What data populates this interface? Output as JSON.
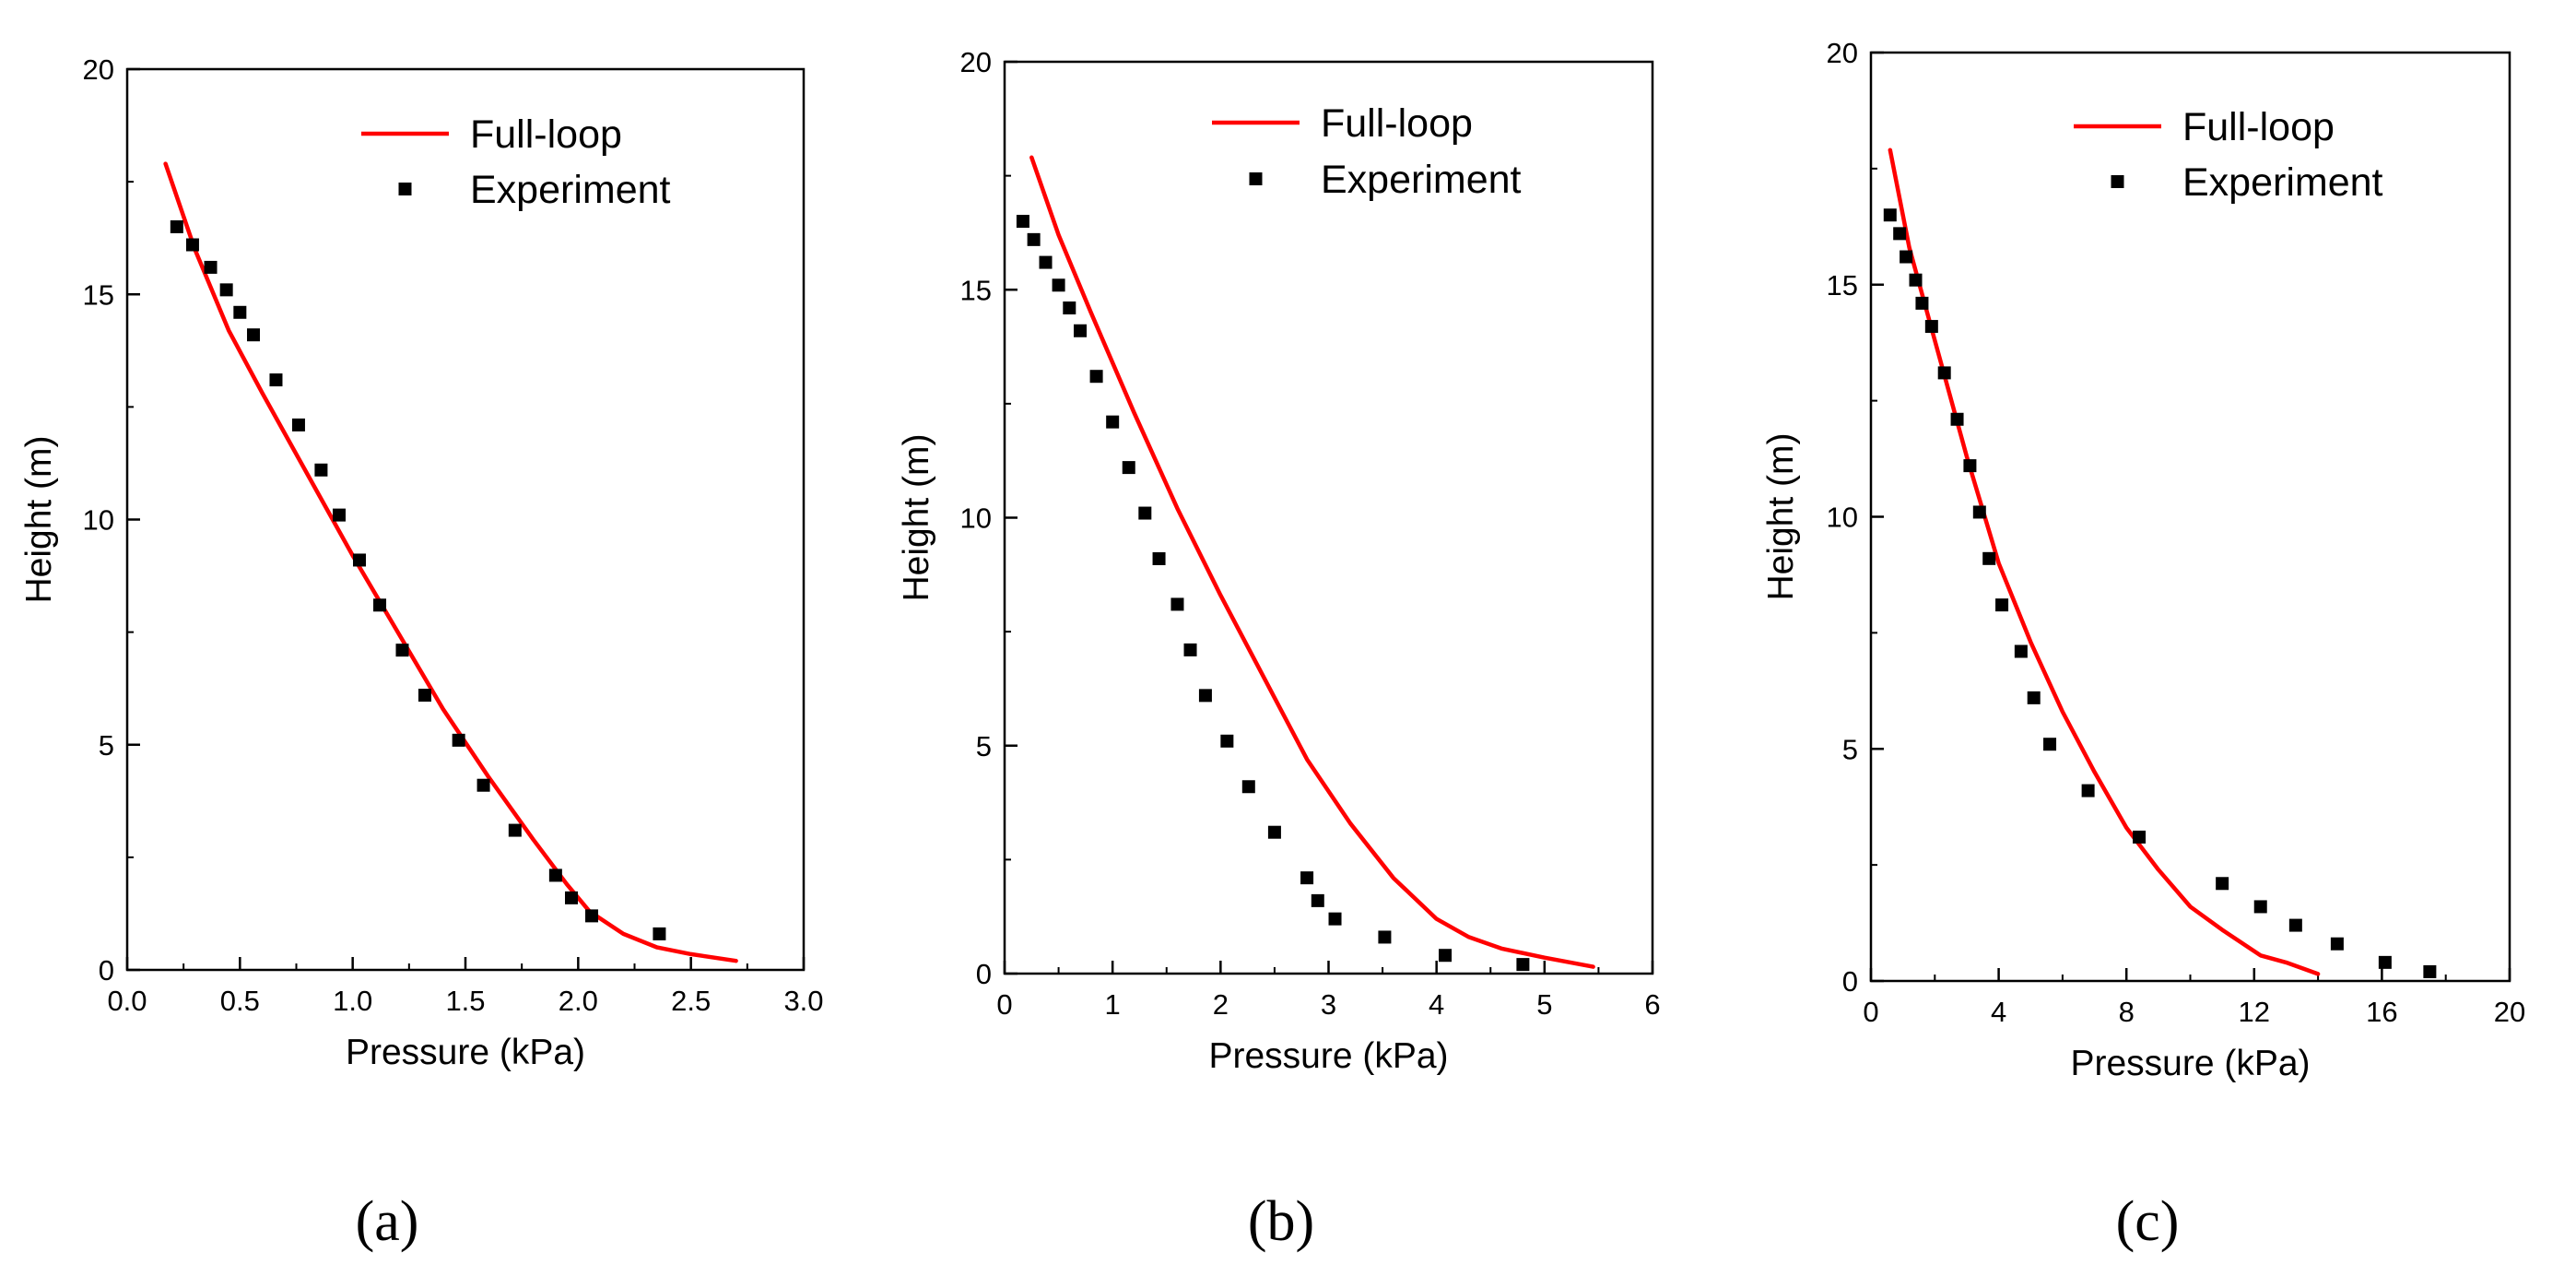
{
  "colors": {
    "simulation_line": "#ff0000",
    "experiment_marker": "#000000",
    "axis": "#000000",
    "background": "#ffffff"
  },
  "chart_data": [
    {
      "type": "line+scatter",
      "panel_label": "(a)",
      "xlabel": "Pressure (kPa)",
      "ylabel": "Height (m)",
      "xlim": [
        0.0,
        3.0
      ],
      "ylim": [
        0,
        20
      ],
      "xticks": [
        "0.0",
        "0.5",
        "1.0",
        "1.5",
        "2.0",
        "2.5",
        "3.0"
      ],
      "xtick_values": [
        0.0,
        0.5,
        1.0,
        1.5,
        2.0,
        2.5,
        3.0
      ],
      "yticks": [
        "0",
        "5",
        "10",
        "15",
        "20"
      ],
      "ytick_values": [
        0,
        5,
        10,
        15,
        20
      ],
      "legend": [
        "Full-loop",
        "Experiment"
      ],
      "legend_position": "top-right",
      "series": [
        {
          "name": "Full-loop",
          "kind": "line",
          "x": [
            0.17,
            0.3,
            0.45,
            0.6,
            0.8,
            1.0,
            1.2,
            1.4,
            1.6,
            1.8,
            1.95,
            2.05,
            2.2,
            2.35,
            2.5,
            2.7
          ],
          "y": [
            17.9,
            16.0,
            14.2,
            12.8,
            11.0,
            9.2,
            7.5,
            5.8,
            4.3,
            2.9,
            1.9,
            1.3,
            0.8,
            0.5,
            0.35,
            0.2
          ]
        },
        {
          "name": "Experiment",
          "kind": "scatter",
          "x": [
            0.22,
            0.29,
            0.37,
            0.44,
            0.5,
            0.56,
            0.66,
            0.76,
            0.86,
            0.94,
            1.03,
            1.12,
            1.22,
            1.32,
            1.47,
            1.58,
            1.72,
            1.9,
            1.97,
            2.06,
            2.36
          ],
          "y": [
            16.5,
            16.1,
            15.6,
            15.1,
            14.6,
            14.1,
            13.1,
            12.1,
            11.1,
            10.1,
            9.1,
            8.1,
            7.1,
            6.1,
            5.1,
            4.1,
            3.1,
            2.1,
            1.6,
            1.2,
            0.8
          ]
        }
      ]
    },
    {
      "type": "line+scatter",
      "panel_label": "(b)",
      "xlabel": "Pressure (kPa)",
      "ylabel": "Height (m)",
      "xlim": [
        0,
        6
      ],
      "ylim": [
        0,
        20
      ],
      "xticks": [
        "0",
        "1",
        "2",
        "3",
        "4",
        "5",
        "6"
      ],
      "xtick_values": [
        0,
        1,
        2,
        3,
        4,
        5,
        6
      ],
      "yticks": [
        "0",
        "5",
        "10",
        "15",
        "20"
      ],
      "ytick_values": [
        0,
        5,
        10,
        15,
        20
      ],
      "legend": [
        "Full-loop",
        "Experiment"
      ],
      "legend_position": "top-right",
      "series": [
        {
          "name": "Full-loop",
          "kind": "line",
          "x": [
            0.25,
            0.5,
            0.8,
            1.2,
            1.6,
            2.0,
            2.4,
            2.8,
            3.2,
            3.6,
            4.0,
            4.3,
            4.6,
            5.0,
            5.45
          ],
          "y": [
            17.9,
            16.2,
            14.5,
            12.3,
            10.2,
            8.3,
            6.5,
            4.7,
            3.3,
            2.1,
            1.2,
            0.8,
            0.55,
            0.35,
            0.15
          ]
        },
        {
          "name": "Experiment",
          "kind": "scatter",
          "x": [
            0.17,
            0.27,
            0.38,
            0.5,
            0.6,
            0.7,
            0.85,
            1.0,
            1.15,
            1.3,
            1.43,
            1.6,
            1.72,
            1.86,
            2.06,
            2.26,
            2.5,
            2.8,
            2.9,
            3.06,
            3.52,
            4.08,
            4.8
          ],
          "y": [
            16.5,
            16.1,
            15.6,
            15.1,
            14.6,
            14.1,
            13.1,
            12.1,
            11.1,
            10.1,
            9.1,
            8.1,
            7.1,
            6.1,
            5.1,
            4.1,
            3.1,
            2.1,
            1.6,
            1.2,
            0.8,
            0.4,
            0.2
          ]
        }
      ]
    },
    {
      "type": "line+scatter",
      "panel_label": "(c)",
      "xlabel": "Pressure (kPa)",
      "ylabel": "Height (m)",
      "xlim": [
        0,
        20
      ],
      "ylim": [
        0,
        20
      ],
      "xticks": [
        "0",
        "4",
        "8",
        "12",
        "16",
        "20"
      ],
      "xtick_values": [
        0,
        4,
        8,
        12,
        16,
        20
      ],
      "yticks": [
        "0",
        "5",
        "10",
        "15",
        "20"
      ],
      "ytick_values": [
        0,
        5,
        10,
        15,
        20
      ],
      "legend": [
        "Full-loop",
        "Experiment"
      ],
      "legend_position": "top-right",
      "series": [
        {
          "name": "Full-loop",
          "kind": "line",
          "x": [
            0.6,
            1.2,
            2.0,
            3.0,
            4.0,
            5.0,
            6.0,
            7.0,
            8.0,
            9.0,
            10.0,
            11.0,
            12.2,
            13.0,
            14.0
          ],
          "y": [
            17.9,
            15.8,
            13.8,
            11.3,
            9.0,
            7.3,
            5.8,
            4.5,
            3.3,
            2.4,
            1.6,
            1.1,
            0.55,
            0.4,
            0.15
          ]
        },
        {
          "name": "Experiment",
          "kind": "scatter",
          "x": [
            0.6,
            0.9,
            1.1,
            1.4,
            1.6,
            1.9,
            2.3,
            2.7,
            3.1,
            3.4,
            3.7,
            4.1,
            4.7,
            5.1,
            5.6,
            6.8,
            8.4,
            11.0,
            12.2,
            13.3,
            14.6,
            16.1,
            17.5
          ],
          "y": [
            16.5,
            16.1,
            15.6,
            15.1,
            14.6,
            14.1,
            13.1,
            12.1,
            11.1,
            10.1,
            9.1,
            8.1,
            7.1,
            6.1,
            5.1,
            4.1,
            3.1,
            2.1,
            1.6,
            1.2,
            0.8,
            0.4,
            0.2
          ]
        }
      ]
    }
  ]
}
